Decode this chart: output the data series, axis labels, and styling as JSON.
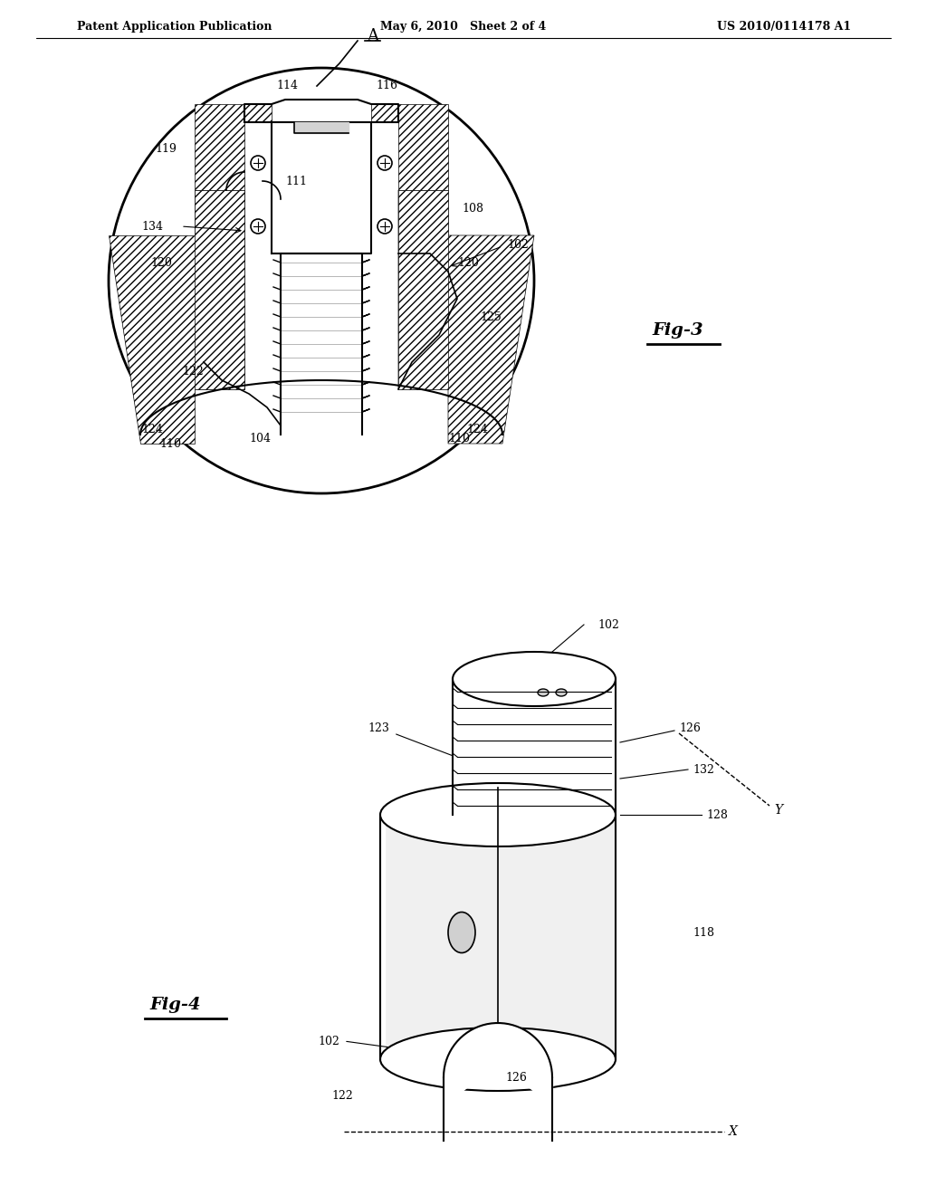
{
  "bg_color": "#ffffff",
  "header_left": "Patent Application Publication",
  "header_center": "May 6, 2010   Sheet 2 of 4",
  "header_right": "US 2010/0114178 A1",
  "fig3_label": "Fig-3",
  "fig4_label": "Fig-4",
  "label_A": "A",
  "label_102": "102",
  "label_108": "108",
  "label_110_left": "110",
  "label_110_right": "110",
  "label_111": "111",
  "label_114": "114",
  "label_116": "116",
  "label_119": "119",
  "label_120_left": "120",
  "label_120_right": "120",
  "label_122": "122",
  "label_124_left": "124",
  "label_124_right": "124",
  "label_125": "125",
  "label_134": "134",
  "label_104": "104",
  "label_102_f4_top": "102",
  "label_102_f4_left": "102",
  "label_123": "123",
  "label_126_f4_top": "126",
  "label_126_f4_bot": "126",
  "label_128": "128",
  "label_132": "132",
  "label_118": "118",
  "label_122_f4": "122",
  "label_X": "X",
  "label_Y": "Y",
  "line_color": "#000000",
  "hatch_color": "#000000",
  "text_color": "#000000"
}
